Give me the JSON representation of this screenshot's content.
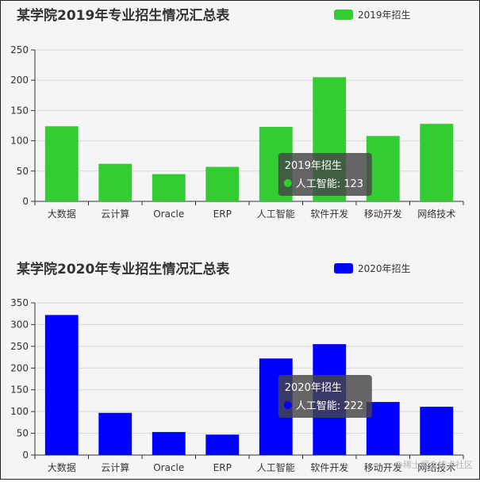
{
  "chart_data": [
    {
      "type": "bar",
      "title": "某学院2019年专业招生情况汇总表",
      "categories": [
        "大数据",
        "云计算",
        "Oracle",
        "ERP",
        "人工智能",
        "软件开发",
        "移动开发",
        "网络技术"
      ],
      "series": [
        {
          "name": "2019年招生",
          "color": "#33cc33",
          "values": [
            124,
            62,
            45,
            57,
            123,
            205,
            108,
            128
          ]
        }
      ],
      "ylim": [
        0,
        250
      ],
      "yticks": [
        0,
        50,
        100,
        150,
        200,
        250
      ],
      "grid": true,
      "legend": "top-right",
      "tooltip": {
        "title": "2019年招生",
        "label": "人工智能: 123",
        "category_index": 4
      }
    },
    {
      "type": "bar",
      "title": "某学院2020年专业招生情况汇总表",
      "categories": [
        "大数据",
        "云计算",
        "Oracle",
        "ERP",
        "人工智能",
        "软件开发",
        "移动开发",
        "网络技术"
      ],
      "series": [
        {
          "name": "2020年招生",
          "color": "#0000ff",
          "values": [
            322,
            97,
            53,
            47,
            222,
            255,
            122,
            111
          ]
        }
      ],
      "ylim": [
        0,
        350
      ],
      "yticks": [
        0,
        50,
        100,
        150,
        200,
        250,
        300,
        350
      ],
      "grid": true,
      "legend": "top-right",
      "tooltip": {
        "title": "2020年招生",
        "label": "人工智能: 222",
        "category_index": 4
      }
    }
  ],
  "watermark": "@稀土掘金技术社区"
}
